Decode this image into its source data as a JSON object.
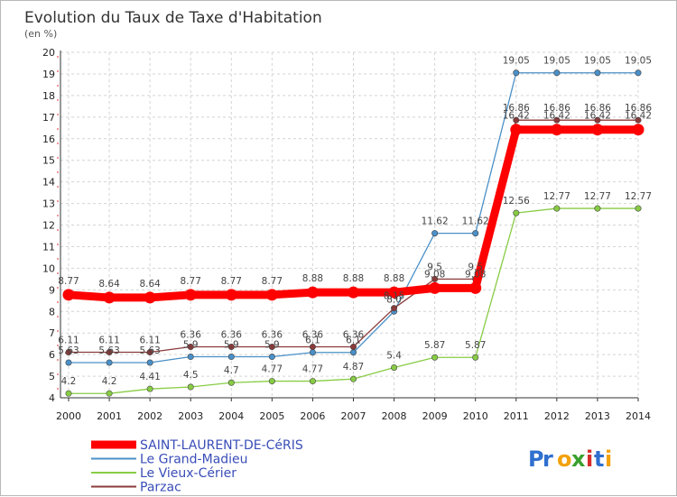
{
  "chart_data": {
    "type": "line",
    "title": "Evolution du Taux de Taxe d'Habitation",
    "subtitle": "(en %)",
    "xlabel": "",
    "ylabel": "",
    "ylim": [
      4,
      20
    ],
    "yticks": [
      "4",
      "5",
      "6",
      "7",
      "8",
      "9",
      "10",
      "11",
      "12",
      "13",
      "14",
      "15",
      "16",
      "17",
      "18",
      "19",
      "20"
    ],
    "x": [
      "2000",
      "2001",
      "2002",
      "2003",
      "2004",
      "2005",
      "2006",
      "2007",
      "2008",
      "2009",
      "2010",
      "2011",
      "2012",
      "2013",
      "2014"
    ],
    "grid": true,
    "legend_position": "bottom-left",
    "series": [
      {
        "name": "SAINT-LAURENT-DE-CéRIS",
        "color": "#ff0000",
        "values": [
          8.77,
          8.64,
          8.64,
          8.77,
          8.77,
          8.77,
          8.88,
          8.88,
          8.88,
          9.08,
          9.08,
          16.42,
          16.42,
          16.42,
          16.42
        ],
        "labels": [
          "8.77",
          "8.64",
          "8.64",
          "8.77",
          "8.77",
          "8.77",
          "8.88",
          "8.88",
          "8.88",
          "9.08",
          "9.08",
          "16.42",
          "16.42",
          "16.42",
          "16.42"
        ]
      },
      {
        "name": "Le Grand-Madieu",
        "color": "#4a90c8",
        "values": [
          5.63,
          5.63,
          5.63,
          5.9,
          5.9,
          5.9,
          6.1,
          6.1,
          8.0,
          11.62,
          11.62,
          19.05,
          19.05,
          19.05,
          19.05
        ],
        "labels": [
          "5.63",
          "5.63",
          "5.63",
          "5.9",
          "5.9",
          "5.9",
          "6.1",
          "6.1",
          "8.0",
          "11.62",
          "11.62",
          "19.05",
          "19.05",
          "19.05",
          "19.05"
        ]
      },
      {
        "name": "Le Vieux-Cérier",
        "color": "#88cc44",
        "values": [
          4.2,
          4.2,
          4.41,
          4.5,
          4.7,
          4.77,
          4.77,
          4.87,
          5.4,
          5.87,
          5.87,
          12.56,
          12.77,
          12.77,
          12.77
        ],
        "labels": [
          "4.2",
          "4.2",
          "4.41",
          "4.5",
          "4.7",
          "4.77",
          "4.77",
          "4.87",
          "5.4",
          "5.87",
          "5.87",
          "12.56",
          "12.77",
          "12.77",
          "12.77"
        ]
      },
      {
        "name": "Parzac",
        "color": "#8b3a3a",
        "values": [
          6.11,
          6.11,
          6.11,
          6.36,
          6.36,
          6.36,
          6.36,
          6.36,
          8.15,
          9.5,
          9.5,
          16.86,
          16.86,
          16.86,
          16.86
        ],
        "labels": [
          "6.11",
          "6.11",
          "6.11",
          "6.36",
          "6.36",
          "6.36",
          "6.36",
          "6.36",
          "8.15",
          "9.5",
          "9.5",
          "16.86",
          "16.86",
          "16.86",
          "16.86"
        ]
      }
    ]
  },
  "logo": {
    "text": "Proxiti",
    "letters": [
      {
        "ch": "P",
        "color": "#2f6fcf"
      },
      {
        "ch": "r",
        "color": "#2f6fcf"
      },
      {
        "ch": "o",
        "color": "#f2a20c"
      },
      {
        "ch": "x",
        "color": "#3aa02e"
      },
      {
        "ch": "i",
        "color": "#d62c2c"
      },
      {
        "ch": "t",
        "color": "#2f6fcf"
      },
      {
        "ch": "i",
        "color": "#f2a20c"
      }
    ]
  }
}
